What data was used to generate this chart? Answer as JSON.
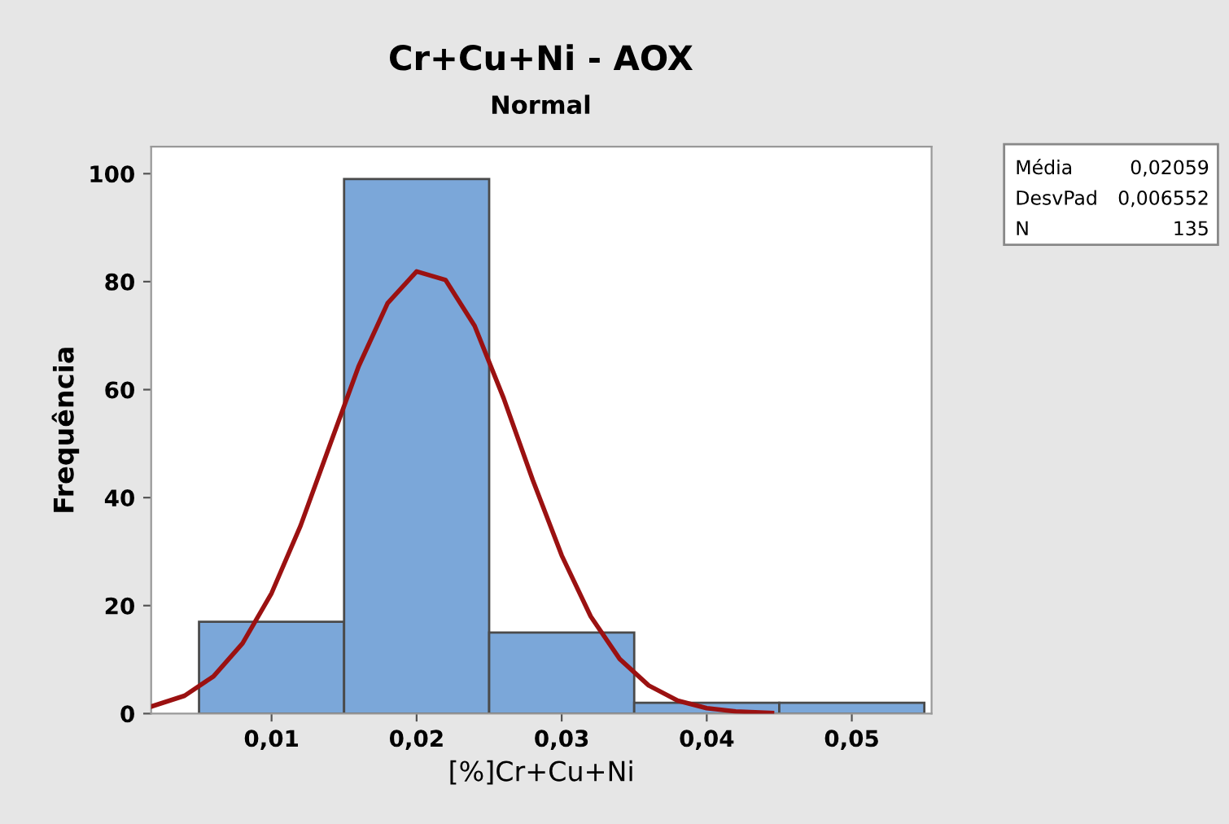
{
  "chart_data": {
    "type": "histogram",
    "title": "Cr+Cu+Ni - AOX",
    "subtitle": "Normal",
    "xlabel": "[%]Cr+Cu+Ni",
    "ylabel": "Frequência",
    "bins": [
      0.005,
      0.015,
      0.025,
      0.035,
      0.045,
      0.055
    ],
    "values": [
      17,
      99,
      15,
      2,
      2
    ],
    "color": "#7ba7d9",
    "series": [
      {
        "type": "line",
        "color": "#9b1111",
        "x": [
          0.0017,
          0.004,
          0.006,
          0.008,
          0.01,
          0.012,
          0.014,
          0.016,
          0.018,
          0.02,
          0.022,
          0.024,
          0.026,
          0.028,
          0.03,
          0.032,
          0.034,
          0.036,
          0.038,
          0.04,
          0.042,
          0.0445
        ],
        "values": [
          1.3,
          3.3,
          6.9,
          13,
          22.3,
          34.8,
          49.6,
          64.3,
          76,
          81.9,
          80.3,
          71.8,
          58.4,
          43.3,
          29.3,
          18,
          10.1,
          5.2,
          2.4,
          1,
          0.4,
          0.1
        ]
      }
    ],
    "xlim": [
      0.0017,
      0.0555
    ],
    "ylim": [
      0,
      105
    ],
    "xticks": [
      {
        "value": 0.01,
        "label": "0,01"
      },
      {
        "value": 0.02,
        "label": "0,02"
      },
      {
        "value": 0.03,
        "label": "0,03"
      },
      {
        "value": 0.04,
        "label": "0,04"
      },
      {
        "value": 0.05,
        "label": "0,05"
      }
    ],
    "yticks": [
      0,
      20,
      40,
      60,
      80,
      100
    ],
    "grid": false,
    "legend": false,
    "annotations": [
      "Média",
      "0,02059",
      "DesvPad",
      "0,006552",
      "N",
      "135"
    ]
  }
}
